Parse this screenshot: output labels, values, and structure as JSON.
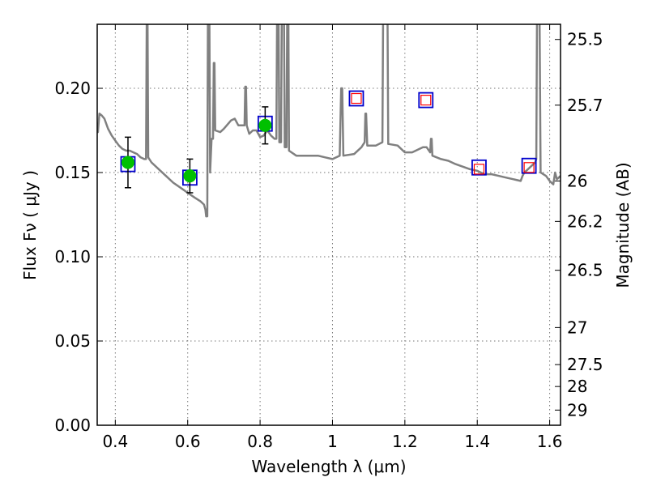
{
  "chart_data": {
    "type": "scatter",
    "title": "",
    "xlabel": "Wavelength  λ (μm)",
    "ylabel": "Flux  Fν  ( μJy )",
    "ylabel_right": "Magnitude (AB)",
    "xlim": [
      0.35,
      1.63
    ],
    "ylim": [
      0.0,
      0.238
    ],
    "grid": true,
    "x_ticks": [
      0.4,
      0.6,
      0.8,
      1.0,
      1.2,
      1.4,
      1.6
    ],
    "x_tick_labels": [
      "0.4",
      "0.6",
      "0.8",
      "1",
      "1.2",
      "1.4",
      "1.6"
    ],
    "y_ticks": [
      0.0,
      0.05,
      0.1,
      0.15,
      0.2
    ],
    "y_tick_labels": [
      "0.00",
      "0.05",
      "0.10",
      "0.15",
      "0.20"
    ],
    "right_ticks": [
      {
        "label": "25.5",
        "flux": 0.229
      },
      {
        "label": "25.7",
        "flux": 0.19
      },
      {
        "label": "26",
        "flux": 0.145
      },
      {
        "label": "26.2",
        "flux": 0.121
      },
      {
        "label": "26.5",
        "flux": 0.092
      },
      {
        "label": "27",
        "flux": 0.058
      },
      {
        "label": "27.5",
        "flux": 0.036
      },
      {
        "label": "28",
        "flux": 0.023
      },
      {
        "label": "29",
        "flux": 0.009
      }
    ],
    "observed": {
      "color": "#00c000",
      "points": [
        {
          "x": 0.435,
          "y": 0.156,
          "yerr": 0.015
        },
        {
          "x": 0.606,
          "y": 0.148,
          "yerr": 0.01
        },
        {
          "x": 0.814,
          "y": 0.178,
          "yerr": 0.011
        }
      ]
    },
    "model_boxes": {
      "color": "#0000cc",
      "points": [
        {
          "x": 0.435,
          "y": 0.155
        },
        {
          "x": 0.606,
          "y": 0.147
        },
        {
          "x": 0.814,
          "y": 0.179
        },
        {
          "x": 1.066,
          "y": 0.194
        },
        {
          "x": 1.258,
          "y": 0.193
        },
        {
          "x": 1.405,
          "y": 0.153
        },
        {
          "x": 1.543,
          "y": 0.154
        }
      ]
    },
    "upper_limits": {
      "color": "#ff0000",
      "points": [
        {
          "x": 1.066,
          "y": 0.194
        },
        {
          "x": 1.258,
          "y": 0.193
        },
        {
          "x": 1.405,
          "y": 0.152
        },
        {
          "x": 1.543,
          "y": 0.153
        }
      ]
    },
    "sed_model": {
      "color": "#808080",
      "points": [
        [
          0.35,
          0.178
        ],
        [
          0.352,
          0.174
        ],
        [
          0.356,
          0.185
        ],
        [
          0.362,
          0.184
        ],
        [
          0.37,
          0.182
        ],
        [
          0.38,
          0.176
        ],
        [
          0.39,
          0.172
        ],
        [
          0.4,
          0.169
        ],
        [
          0.41,
          0.166
        ],
        [
          0.42,
          0.164
        ],
        [
          0.43,
          0.163
        ],
        [
          0.44,
          0.163
        ],
        [
          0.45,
          0.162
        ],
        [
          0.46,
          0.161
        ],
        [
          0.47,
          0.159
        ],
        [
          0.48,
          0.158
        ],
        [
          0.485,
          0.158
        ],
        [
          0.487,
          0.245
        ],
        [
          0.489,
          0.245
        ],
        [
          0.491,
          0.159
        ],
        [
          0.5,
          0.156
        ],
        [
          0.52,
          0.152
        ],
        [
          0.54,
          0.148
        ],
        [
          0.56,
          0.144
        ],
        [
          0.58,
          0.141
        ],
        [
          0.6,
          0.138
        ],
        [
          0.62,
          0.135
        ],
        [
          0.635,
          0.133
        ],
        [
          0.645,
          0.131
        ],
        [
          0.649,
          0.128
        ],
        [
          0.651,
          0.124
        ],
        [
          0.654,
          0.124
        ],
        [
          0.656,
          0.245
        ],
        [
          0.66,
          0.245
        ],
        [
          0.662,
          0.15
        ],
        [
          0.666,
          0.17
        ],
        [
          0.67,
          0.17
        ],
        [
          0.672,
          0.215
        ],
        [
          0.674,
          0.215
        ],
        [
          0.676,
          0.175
        ],
        [
          0.69,
          0.174
        ],
        [
          0.7,
          0.176
        ],
        [
          0.72,
          0.181
        ],
        [
          0.73,
          0.182
        ],
        [
          0.74,
          0.178
        ],
        [
          0.75,
          0.178
        ],
        [
          0.757,
          0.178
        ],
        [
          0.759,
          0.201
        ],
        [
          0.761,
          0.201
        ],
        [
          0.763,
          0.178
        ],
        [
          0.77,
          0.173
        ],
        [
          0.78,
          0.175
        ],
        [
          0.79,
          0.175
        ],
        [
          0.8,
          0.171
        ],
        [
          0.81,
          0.172
        ],
        [
          0.82,
          0.175
        ],
        [
          0.83,
          0.172
        ],
        [
          0.84,
          0.17
        ],
        [
          0.845,
          0.17
        ],
        [
          0.847,
          0.245
        ],
        [
          0.851,
          0.245
        ],
        [
          0.853,
          0.168
        ],
        [
          0.858,
          0.168
        ],
        [
          0.86,
          0.245
        ],
        [
          0.866,
          0.245
        ],
        [
          0.868,
          0.165
        ],
        [
          0.873,
          0.165
        ],
        [
          0.875,
          0.245
        ],
        [
          0.878,
          0.245
        ],
        [
          0.88,
          0.163
        ],
        [
          0.9,
          0.16
        ],
        [
          0.92,
          0.16
        ],
        [
          0.94,
          0.16
        ],
        [
          0.96,
          0.16
        ],
        [
          0.98,
          0.159
        ],
        [
          1.0,
          0.158
        ],
        [
          1.02,
          0.16
        ],
        [
          1.024,
          0.2
        ],
        [
          1.027,
          0.2
        ],
        [
          1.03,
          0.16
        ],
        [
          1.06,
          0.161
        ],
        [
          1.08,
          0.165
        ],
        [
          1.089,
          0.168
        ],
        [
          1.091,
          0.185
        ],
        [
          1.093,
          0.185
        ],
        [
          1.096,
          0.166
        ],
        [
          1.12,
          0.166
        ],
        [
          1.138,
          0.168
        ],
        [
          1.14,
          0.245
        ],
        [
          1.152,
          0.245
        ],
        [
          1.154,
          0.167
        ],
        [
          1.18,
          0.166
        ],
        [
          1.2,
          0.162
        ],
        [
          1.22,
          0.162
        ],
        [
          1.24,
          0.164
        ],
        [
          1.25,
          0.165
        ],
        [
          1.26,
          0.165
        ],
        [
          1.27,
          0.162
        ],
        [
          1.272,
          0.17
        ],
        [
          1.274,
          0.17
        ],
        [
          1.276,
          0.16
        ],
        [
          1.3,
          0.158
        ],
        [
          1.32,
          0.157
        ],
        [
          1.34,
          0.155
        ],
        [
          1.38,
          0.152
        ],
        [
          1.4,
          0.151
        ],
        [
          1.42,
          0.149
        ],
        [
          1.44,
          0.149
        ],
        [
          1.46,
          0.148
        ],
        [
          1.48,
          0.147
        ],
        [
          1.5,
          0.146
        ],
        [
          1.52,
          0.145
        ],
        [
          1.525,
          0.148
        ],
        [
          1.53,
          0.15
        ],
        [
          1.54,
          0.152
        ],
        [
          1.55,
          0.154
        ],
        [
          1.56,
          0.156
        ],
        [
          1.563,
          0.158
        ],
        [
          1.565,
          0.245
        ],
        [
          1.572,
          0.245
        ],
        [
          1.575,
          0.15
        ],
        [
          1.59,
          0.148
        ],
        [
          1.6,
          0.145
        ],
        [
          1.61,
          0.143
        ],
        [
          1.615,
          0.15
        ],
        [
          1.62,
          0.146
        ],
        [
          1.63,
          0.148
        ]
      ]
    }
  }
}
